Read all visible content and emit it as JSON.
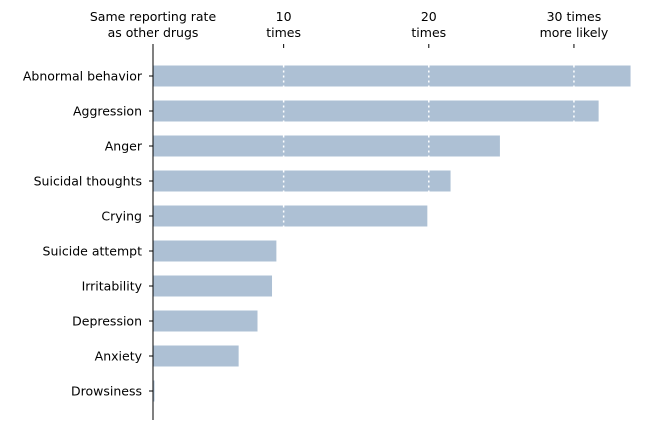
{
  "chart_data": {
    "type": "bar",
    "orientation": "horizontal",
    "categories": [
      "Abnormal behavior",
      "Aggression",
      "Anger",
      "Suicidal thoughts",
      "Crying",
      "Suicide attempt",
      "Irritability",
      "Depression",
      "Anxiety",
      "Drowsiness"
    ],
    "values": [
      33.9,
      31.7,
      24.9,
      21.5,
      19.9,
      9.5,
      9.2,
      8.2,
      6.9,
      1.1
    ],
    "bar_color": "#adc0d4",
    "gridline_color": "#ffffff",
    "axis_color": "#000000",
    "xlim": [
      1,
      34
    ],
    "xaxis_position": "top",
    "xticks": [
      {
        "value": 1,
        "lines": [
          "Same reporting rate",
          "as other drugs"
        ]
      },
      {
        "value": 10,
        "lines": [
          "10",
          "times"
        ]
      },
      {
        "value": 20,
        "lines": [
          "20",
          "times"
        ]
      },
      {
        "value": 30,
        "lines": [
          "30 times",
          "more likely"
        ]
      }
    ],
    "grid": "dotted vertical lines inside bars at 10, 20, 30"
  }
}
